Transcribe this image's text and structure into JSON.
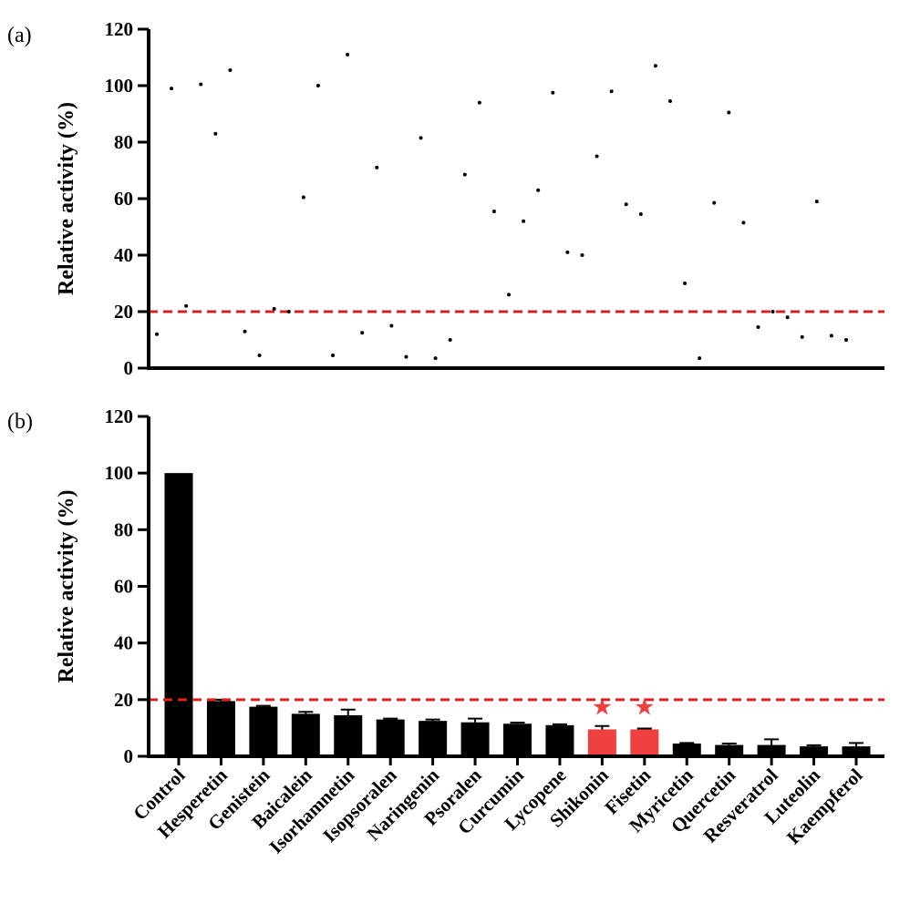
{
  "chart_data": [
    {
      "panel": "(a)",
      "type": "scatter",
      "ylabel": "Relative activity (%)",
      "ylim": [
        0,
        120
      ],
      "yticks": [
        0,
        20,
        40,
        60,
        80,
        100,
        120
      ],
      "threshold": 20,
      "threshold_color": "#e02020",
      "point_color": "#000000",
      "points": [
        {
          "x": 1,
          "y": 12
        },
        {
          "x": 2,
          "y": 99
        },
        {
          "x": 3,
          "y": 22
        },
        {
          "x": 4,
          "y": 100.5
        },
        {
          "x": 5,
          "y": 83
        },
        {
          "x": 6,
          "y": 105.5
        },
        {
          "x": 7,
          "y": 13
        },
        {
          "x": 8,
          "y": 4.5
        },
        {
          "x": 9,
          "y": 21
        },
        {
          "x": 10,
          "y": 20
        },
        {
          "x": 11,
          "y": 60.5
        },
        {
          "x": 12,
          "y": 100
        },
        {
          "x": 13,
          "y": 4.5
        },
        {
          "x": 14,
          "y": 111
        },
        {
          "x": 15,
          "y": 12.5
        },
        {
          "x": 16,
          "y": 71
        },
        {
          "x": 17,
          "y": 15
        },
        {
          "x": 18,
          "y": 4
        },
        {
          "x": 19,
          "y": 81.5
        },
        {
          "x": 20,
          "y": 3.5
        },
        {
          "x": 21,
          "y": 10
        },
        {
          "x": 22,
          "y": 68.5
        },
        {
          "x": 23,
          "y": 94
        },
        {
          "x": 24,
          "y": 55.5
        },
        {
          "x": 25,
          "y": 26
        },
        {
          "x": 26,
          "y": 52
        },
        {
          "x": 27,
          "y": 63
        },
        {
          "x": 28,
          "y": 97.5
        },
        {
          "x": 29,
          "y": 41
        },
        {
          "x": 30,
          "y": 40
        },
        {
          "x": 31,
          "y": 75
        },
        {
          "x": 32,
          "y": 98
        },
        {
          "x": 33,
          "y": 58
        },
        {
          "x": 34,
          "y": 54.5
        },
        {
          "x": 35,
          "y": 107
        },
        {
          "x": 36,
          "y": 94.5
        },
        {
          "x": 37,
          "y": 30
        },
        {
          "x": 38,
          "y": 3.5
        },
        {
          "x": 39,
          "y": 58.5
        },
        {
          "x": 40,
          "y": 90.5
        },
        {
          "x": 41,
          "y": 51.5
        },
        {
          "x": 42,
          "y": 14.5
        },
        {
          "x": 43,
          "y": 20
        },
        {
          "x": 44,
          "y": 18
        },
        {
          "x": 45,
          "y": 11
        },
        {
          "x": 46,
          "y": 59
        },
        {
          "x": 47,
          "y": 11.5
        },
        {
          "x": 48,
          "y": 10
        }
      ]
    },
    {
      "panel": "(b)",
      "type": "bar",
      "ylabel": "Relative activity (%)",
      "ylim": [
        0,
        120
      ],
      "yticks": [
        0,
        20,
        40,
        60,
        80,
        100,
        120
      ],
      "threshold": 20,
      "threshold_color": "#e02020",
      "bar_color": "#000000",
      "highlight_color": "#f04040",
      "star_symbol": "★",
      "categories": [
        "Control",
        "Hesperetin",
        "Genistein",
        "Baicalein",
        "Isorhamnetin",
        "Isopsoralen",
        "Naringenin",
        "Psoralen",
        "Curcumin",
        "Lycopene",
        "Shikonin",
        "Fisetin",
        "Myricetin",
        "Quercetin",
        "Resveratrol",
        "Luteolin",
        "Kaempferol"
      ],
      "values": [
        100,
        19.5,
        17.5,
        15,
        14.5,
        13,
        12.5,
        12,
        11.5,
        11,
        9.5,
        9.5,
        4.5,
        4,
        4,
        3.5,
        3.5
      ],
      "errors": [
        0,
        0.5,
        0.3,
        0.7,
        2,
        0.3,
        0.5,
        1.3,
        0.4,
        0.3,
        1.2,
        0.3,
        0.2,
        0.5,
        2,
        0.4,
        1.2
      ],
      "highlighted": [
        "Shikonin",
        "Fisetin"
      ]
    }
  ]
}
